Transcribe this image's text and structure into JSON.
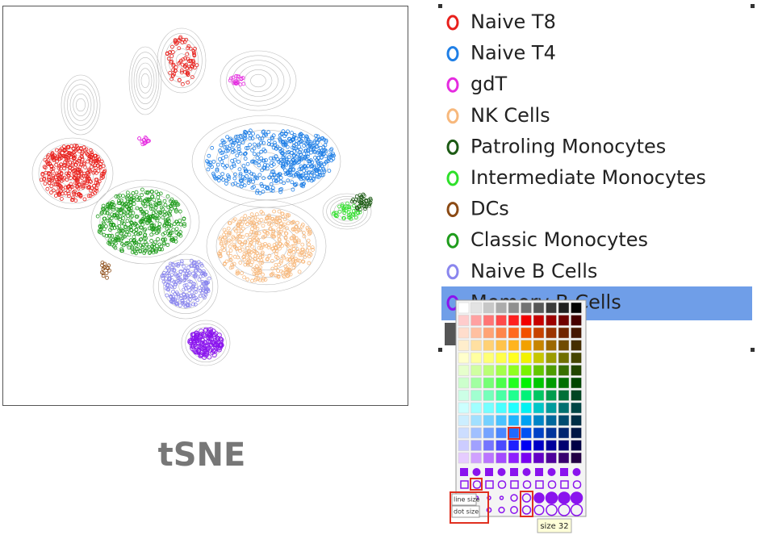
{
  "plot": {
    "title": "tSNE"
  },
  "legend": {
    "items": [
      {
        "label": "Naive T8",
        "color": "#e8201c"
      },
      {
        "label": "Naive T4",
        "color": "#1f7fe6"
      },
      {
        "label": "gdT",
        "color": "#e52be0"
      },
      {
        "label": "NK Cells",
        "color": "#f7b87c"
      },
      {
        "label": "Patroling Monocytes",
        "color": "#1c5a14"
      },
      {
        "label": "Intermediate Monocytes",
        "color": "#2ee02a"
      },
      {
        "label": "DCs",
        "color": "#8b4a14"
      },
      {
        "label": "Classic Monocytes",
        "color": "#1f9c1c"
      },
      {
        "label": "Naive B Cells",
        "color": "#8a86ee"
      },
      {
        "label": "Memory B Cells",
        "color": "#8a14ee"
      }
    ]
  },
  "palette": {
    "line_size_label": "line size",
    "dot_size_label": "dot size",
    "tooltip": "size 32"
  }
}
